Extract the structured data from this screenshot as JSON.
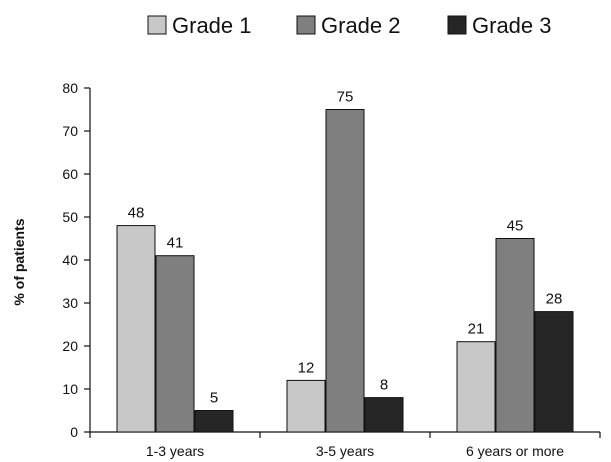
{
  "chart_data": {
    "type": "bar",
    "title": "",
    "xlabel": "",
    "ylabel": "% of patients",
    "ylim": [
      0,
      80
    ],
    "yticks": [
      0,
      10,
      20,
      30,
      40,
      50,
      60,
      70,
      80
    ],
    "grid": false,
    "legend_position": "top",
    "categories": [
      "1-3 years",
      "3-5 years",
      "6 years or more"
    ],
    "series": [
      {
        "name": "Grade 1",
        "values": [
          48,
          12,
          21
        ],
        "color": "#c8c8c8"
      },
      {
        "name": "Grade 2",
        "values": [
          41,
          75,
          45
        ],
        "color": "#7f7f7f"
      },
      {
        "name": "Grade 3",
        "values": [
          5,
          8,
          28
        ],
        "color": "#262626"
      }
    ]
  }
}
